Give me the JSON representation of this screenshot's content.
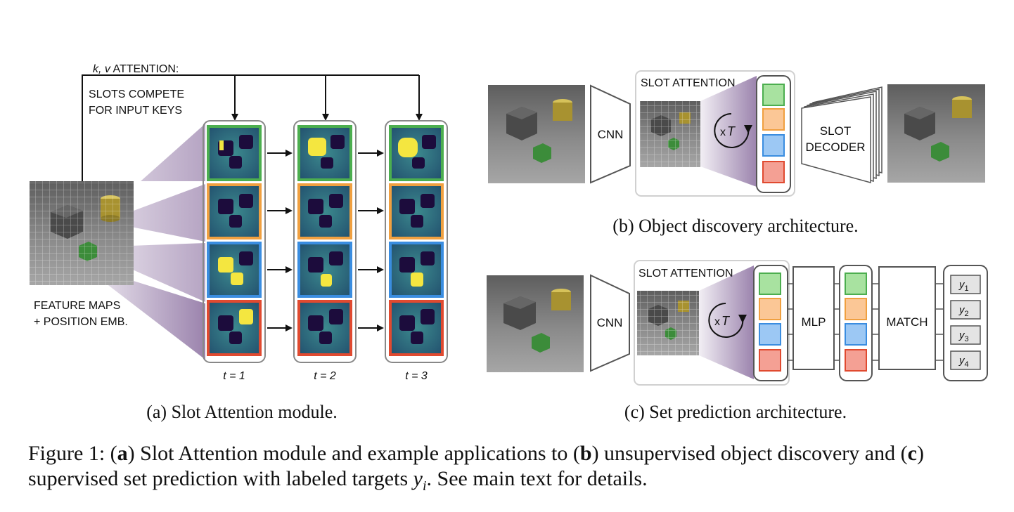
{
  "panel_a": {
    "kv_attention_prefix": "k, v",
    "kv_attention_suffix": " ATTENTION:",
    "compete_line1": "SLOTS COMPETE",
    "compete_line2": "FOR INPUT KEYS",
    "feature_line1": "FEATURE MAPS",
    "feature_line2": "+ POSITION EMB.",
    "t1": "t = 1",
    "t2": "t = 2",
    "t3": "t = 3",
    "caption": "(a) Slot Attention module."
  },
  "panel_b": {
    "slot_attention": "SLOT ATTENTION",
    "cnn": "CNN",
    "xt_x": "x",
    "xt_t": "T",
    "decoder_line1": "SLOT",
    "decoder_line2": "DECODER",
    "caption": "(b) Object discovery architecture."
  },
  "panel_c": {
    "slot_attention": "SLOT ATTENTION",
    "cnn": "CNN",
    "xt_x": "x",
    "xt_t": "T",
    "mlp": "MLP",
    "match": "MATCH",
    "y_base": "y",
    "y_sub": [
      "1",
      "2",
      "3",
      "4"
    ],
    "caption": "(c) Set prediction architecture."
  },
  "figure_caption": {
    "label": "Figure 1: (",
    "a": "a",
    "t1": ") Slot Attention module and example applications to (",
    "b": "b",
    "t2": ") unsupervised object discovery and (",
    "c": "c",
    "t3": ") supervised set prediction with labeled targets ",
    "math_y": "y",
    "math_i": "i",
    "t4": ". See main text for details."
  },
  "colors": {
    "slot_green": "#4cae4f",
    "slot_orange": "#f0a040",
    "slot_blue": "#3a8de0",
    "slot_red": "#e04a30",
    "fill_green": "#a8e2a0",
    "fill_orange": "#fbc796",
    "fill_blue": "#9cc8f4",
    "fill_red": "#f4a094",
    "attention_purple": "#8a6aa0",
    "mask_bg": "#2a6a82",
    "mask_yellow": "#f4e640"
  }
}
